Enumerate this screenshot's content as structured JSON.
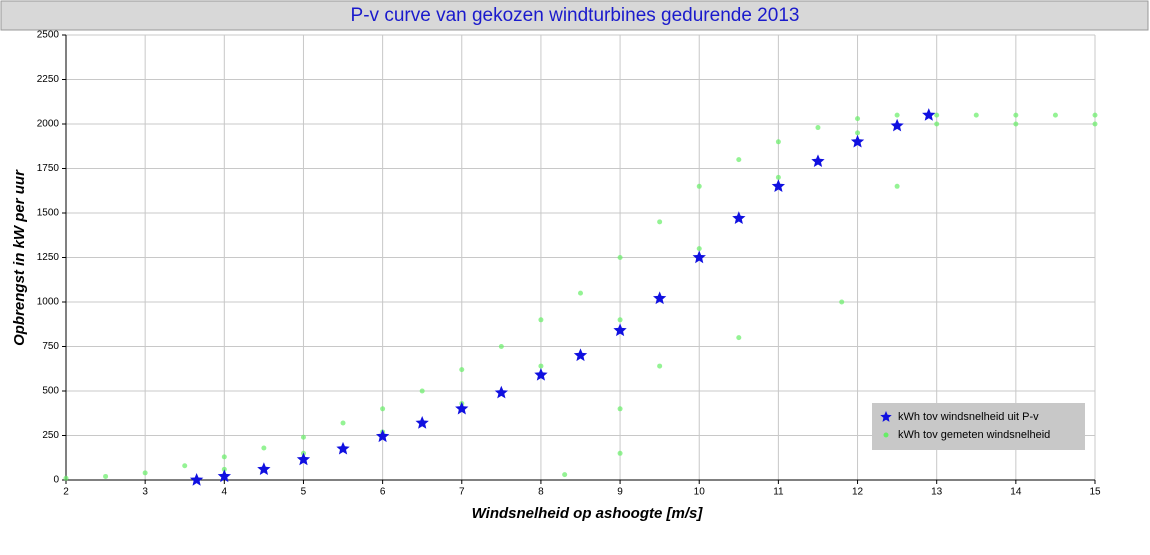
{
  "chart_data": {
    "type": "scatter",
    "title": "P-v curve van gekozen windturbines gedurende 2013",
    "x_label": "Windsnelheid op ashoogte [m/s]",
    "y_label": "Opbrengst in kW per uur",
    "xlim": [
      2,
      15
    ],
    "xticks": [
      2,
      3,
      4,
      5,
      6,
      7,
      8,
      9,
      10,
      11,
      12,
      13,
      14,
      15
    ],
    "ylim": [
      0,
      2500
    ],
    "yticks": [
      0,
      250,
      500,
      750,
      1000,
      1250,
      1500,
      1750,
      2000,
      2250,
      2500
    ],
    "grid": true,
    "legend": "lower right",
    "series": [
      {
        "name": "kWh tov windsnelheid uit P-v",
        "color": "#1010e0",
        "marker": "star",
        "x": [
          3.65,
          4,
          4.5,
          5,
          5.5,
          6,
          6.5,
          7,
          7.5,
          8,
          8.5,
          9,
          9.5,
          10,
          10.5,
          11,
          11.5,
          12,
          12.5,
          12.9
        ],
        "values": [
          0,
          20,
          60,
          115,
          175,
          245,
          320,
          400,
          490,
          590,
          700,
          840,
          1020,
          1250,
          1470,
          1650,
          1790,
          1900,
          1990,
          2050
        ]
      },
      {
        "name": "kWh tov gemeten windsnelheid",
        "color": "#66ee66",
        "marker": "dot",
        "x": [
          2,
          2.5,
          3,
          3.5,
          4,
          4.5,
          5,
          5.5,
          6,
          6.5,
          7,
          7.5,
          8,
          8.5,
          9,
          9.5,
          10,
          10.5,
          11,
          11.5,
          12,
          12.5,
          13,
          13.5,
          14,
          14.5,
          15,
          4,
          5,
          6,
          7,
          8,
          9,
          10,
          11,
          12,
          13,
          14,
          15,
          9,
          9.5,
          10.5,
          11.8,
          12.5,
          8.3,
          9
        ],
        "values": [
          10,
          20,
          40,
          80,
          130,
          180,
          240,
          320,
          400,
          500,
          620,
          750,
          900,
          1050,
          1250,
          1450,
          1650,
          1800,
          1900,
          1980,
          2030,
          2050,
          2050,
          2050,
          2050,
          2050,
          2050,
          60,
          150,
          270,
          430,
          640,
          900,
          1300,
          1700,
          1950,
          2000,
          2000,
          2000,
          400,
          640,
          800,
          1000,
          1650,
          30,
          150
        ]
      }
    ]
  }
}
